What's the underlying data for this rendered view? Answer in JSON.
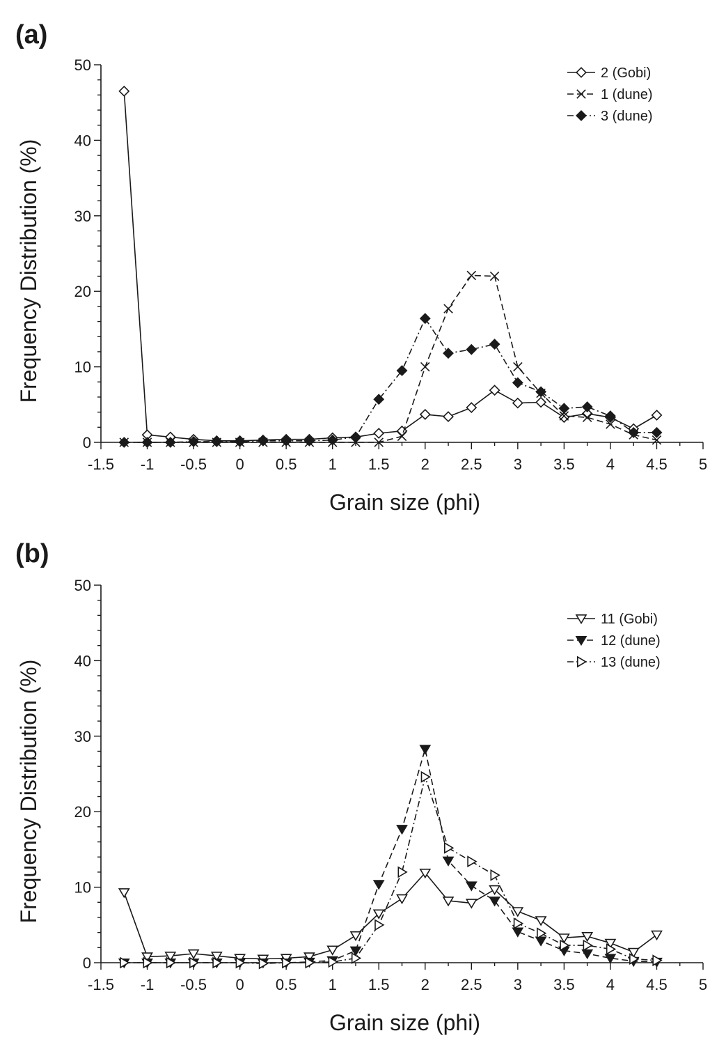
{
  "chart_data": [
    {
      "panel_label": "(a)",
      "type": "line",
      "xlabel": "Grain size (phi)",
      "ylabel": "Frequency Distribution (%)",
      "xlim": [
        -1.5,
        5
      ],
      "ylim": [
        0,
        50
      ],
      "x_ticks": [
        "-1.5",
        "-1",
        "-0.5",
        "0",
        "0.5",
        "1",
        "1.5",
        "2",
        "2.5",
        "3",
        "3.5",
        "4",
        "4.5",
        "5"
      ],
      "y_ticks": [
        "0",
        "10",
        "20",
        "30",
        "40",
        "50"
      ],
      "legend_position": "top-right",
      "x": [
        -1.25,
        -1,
        -0.75,
        -0.5,
        -0.25,
        0,
        0.25,
        0.5,
        0.75,
        1,
        1.25,
        1.5,
        1.75,
        2,
        2.25,
        2.5,
        2.75,
        3,
        3.25,
        3.5,
        3.75,
        4,
        4.25,
        4.5
      ],
      "series": [
        {
          "name": "2 (Gobi)",
          "marker": "diamond-open",
          "line": "solid",
          "values": [
            46.5,
            1.0,
            0.7,
            0.4,
            0.2,
            0.2,
            0.3,
            0.4,
            0.4,
            0.6,
            0.7,
            1.2,
            1.5,
            3.7,
            3.4,
            4.6,
            6.9,
            5.2,
            5.3,
            3.3,
            3.8,
            3.3,
            1.8,
            3.6
          ]
        },
        {
          "name": "1 (dune)",
          "marker": "x",
          "line": "dashed",
          "values": [
            0.0,
            0.0,
            0.0,
            0.0,
            0.0,
            0.0,
            0.0,
            0.0,
            0.0,
            0.0,
            0.0,
            0.0,
            0.8,
            10.0,
            17.7,
            22.1,
            22.0,
            10.0,
            6.5,
            3.5,
            3.3,
            2.4,
            1.0,
            0.3
          ]
        },
        {
          "name": "3 (dune)",
          "marker": "diamond-filled",
          "line": "dashdot",
          "values": [
            0.0,
            0.0,
            0.0,
            0.1,
            0.1,
            0.1,
            0.2,
            0.2,
            0.2,
            0.3,
            0.7,
            5.7,
            9.5,
            16.4,
            11.8,
            12.3,
            13.0,
            7.9,
            6.7,
            4.5,
            4.7,
            3.5,
            1.3,
            1.3
          ]
        }
      ]
    },
    {
      "panel_label": "(b)",
      "type": "line",
      "xlabel": "Grain size (phi)",
      "ylabel": "Frequency Distribution (%)",
      "xlim": [
        -1.5,
        5
      ],
      "ylim": [
        0,
        50
      ],
      "x_ticks": [
        "-1.5",
        "-1",
        "-0.5",
        "0",
        "0.5",
        "1",
        "1.5",
        "2",
        "2.5",
        "3",
        "3.5",
        "4",
        "4.5",
        "5"
      ],
      "y_ticks": [
        "0",
        "10",
        "20",
        "30",
        "40",
        "50"
      ],
      "legend_position": "top-right",
      "x": [
        -1.25,
        -1,
        -0.75,
        -0.5,
        -0.25,
        0,
        0.25,
        0.5,
        0.75,
        1,
        1.25,
        1.5,
        1.75,
        2,
        2.25,
        2.5,
        2.75,
        3,
        3.25,
        3.5,
        3.75,
        4,
        4.25,
        4.5
      ],
      "series": [
        {
          "name": "11 (Gobi)",
          "marker": "triangle-down-open",
          "line": "solid",
          "values": [
            9.3,
            0.8,
            0.9,
            1.2,
            0.9,
            0.6,
            0.5,
            0.6,
            0.8,
            1.7,
            3.6,
            6.5,
            8.5,
            11.9,
            8.2,
            7.9,
            9.7,
            6.8,
            5.6,
            3.3,
            3.5,
            2.6,
            1.4,
            3.7
          ]
        },
        {
          "name": "12 (dune)",
          "marker": "triangle-down-filled",
          "line": "dashed",
          "values": [
            0.0,
            0.0,
            0.0,
            0.0,
            0.0,
            0.0,
            0.0,
            0.0,
            0.1,
            0.3,
            1.6,
            10.4,
            17.7,
            28.3,
            13.5,
            10.2,
            8.2,
            4.1,
            2.9,
            1.6,
            1.2,
            0.6,
            0.2,
            0.1
          ]
        },
        {
          "name": "13 (dune)",
          "marker": "triangle-right-open",
          "line": "dashdot",
          "values": [
            0.0,
            0.0,
            0.0,
            0.0,
            0.0,
            0.0,
            -0.1,
            0.0,
            0.0,
            0.1,
            0.6,
            5.0,
            12.0,
            24.6,
            15.2,
            13.4,
            11.6,
            5.2,
            3.9,
            2.3,
            2.3,
            1.8,
            0.5,
            0.3
          ]
        }
      ]
    }
  ]
}
